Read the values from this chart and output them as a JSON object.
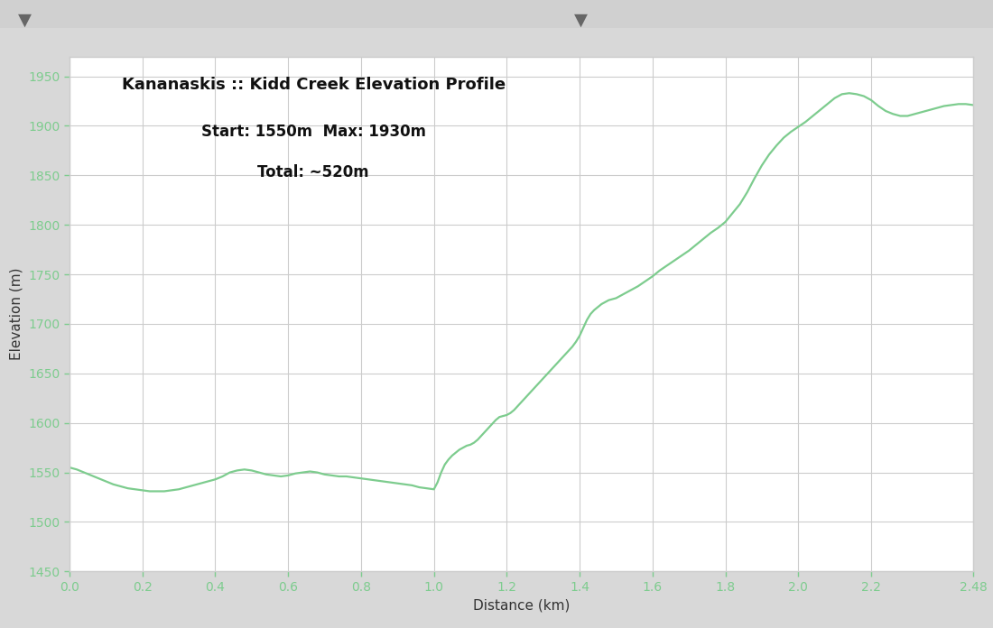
{
  "title_line1": "Kananaskis :: Kidd Creek Elevation Profile",
  "title_line2": "Start: 1550m  Max: 1930m",
  "title_line3": "Total: ~520m",
  "xlabel": "Distance (km)",
  "ylabel": "Elevation (m)",
  "xlim": [
    0.0,
    2.48
  ],
  "ylim": [
    1450,
    1970
  ],
  "xticks": [
    0.0,
    0.2,
    0.4,
    0.6,
    0.8,
    1.0,
    1.2,
    1.4,
    1.6,
    1.8,
    2.0,
    2.2,
    2.48
  ],
  "yticks": [
    1450,
    1500,
    1550,
    1600,
    1650,
    1700,
    1750,
    1800,
    1850,
    1900,
    1950
  ],
  "line_color": "#7dcc8e",
  "tick_color": "#7dcc8e",
  "grid_color": "#cccccc",
  "bg_color": "#ffffff",
  "outer_bg": "#d8d8d8",
  "title_fontsize": 13,
  "subtitle_fontsize": 12,
  "axis_label_fontsize": 11,
  "tick_fontsize": 10,
  "elevation_data": [
    [
      0.0,
      1555
    ],
    [
      0.02,
      1553
    ],
    [
      0.04,
      1550
    ],
    [
      0.06,
      1547
    ],
    [
      0.08,
      1544
    ],
    [
      0.1,
      1541
    ],
    [
      0.12,
      1538
    ],
    [
      0.14,
      1536
    ],
    [
      0.16,
      1534
    ],
    [
      0.18,
      1533
    ],
    [
      0.2,
      1532
    ],
    [
      0.22,
      1531
    ],
    [
      0.24,
      1531
    ],
    [
      0.26,
      1531
    ],
    [
      0.28,
      1532
    ],
    [
      0.3,
      1533
    ],
    [
      0.32,
      1535
    ],
    [
      0.34,
      1537
    ],
    [
      0.36,
      1539
    ],
    [
      0.38,
      1541
    ],
    [
      0.4,
      1543
    ],
    [
      0.42,
      1546
    ],
    [
      0.44,
      1550
    ],
    [
      0.46,
      1552
    ],
    [
      0.48,
      1553
    ],
    [
      0.5,
      1552
    ],
    [
      0.52,
      1550
    ],
    [
      0.54,
      1548
    ],
    [
      0.56,
      1547
    ],
    [
      0.58,
      1546
    ],
    [
      0.6,
      1547
    ],
    [
      0.62,
      1549
    ],
    [
      0.64,
      1550
    ],
    [
      0.66,
      1551
    ],
    [
      0.68,
      1550
    ],
    [
      0.7,
      1548
    ],
    [
      0.72,
      1547
    ],
    [
      0.74,
      1546
    ],
    [
      0.76,
      1546
    ],
    [
      0.78,
      1545
    ],
    [
      0.8,
      1544
    ],
    [
      0.82,
      1543
    ],
    [
      0.84,
      1542
    ],
    [
      0.86,
      1541
    ],
    [
      0.88,
      1540
    ],
    [
      0.9,
      1539
    ],
    [
      0.92,
      1538
    ],
    [
      0.94,
      1537
    ],
    [
      0.96,
      1535
    ],
    [
      0.98,
      1534
    ],
    [
      1.0,
      1533
    ],
    [
      1.01,
      1540
    ],
    [
      1.02,
      1550
    ],
    [
      1.03,
      1558
    ],
    [
      1.04,
      1563
    ],
    [
      1.05,
      1567
    ],
    [
      1.06,
      1570
    ],
    [
      1.07,
      1573
    ],
    [
      1.08,
      1575
    ],
    [
      1.09,
      1577
    ],
    [
      1.1,
      1578
    ],
    [
      1.11,
      1580
    ],
    [
      1.12,
      1583
    ],
    [
      1.13,
      1587
    ],
    [
      1.14,
      1591
    ],
    [
      1.15,
      1595
    ],
    [
      1.16,
      1599
    ],
    [
      1.17,
      1603
    ],
    [
      1.18,
      1606
    ],
    [
      1.19,
      1607
    ],
    [
      1.2,
      1608
    ],
    [
      1.21,
      1610
    ],
    [
      1.22,
      1613
    ],
    [
      1.23,
      1617
    ],
    [
      1.24,
      1621
    ],
    [
      1.25,
      1625
    ],
    [
      1.26,
      1629
    ],
    [
      1.27,
      1633
    ],
    [
      1.28,
      1637
    ],
    [
      1.29,
      1641
    ],
    [
      1.3,
      1645
    ],
    [
      1.31,
      1649
    ],
    [
      1.32,
      1653
    ],
    [
      1.33,
      1657
    ],
    [
      1.34,
      1661
    ],
    [
      1.35,
      1665
    ],
    [
      1.36,
      1669
    ],
    [
      1.37,
      1673
    ],
    [
      1.38,
      1677
    ],
    [
      1.39,
      1682
    ],
    [
      1.4,
      1688
    ],
    [
      1.41,
      1696
    ],
    [
      1.42,
      1704
    ],
    [
      1.43,
      1710
    ],
    [
      1.44,
      1714
    ],
    [
      1.45,
      1717
    ],
    [
      1.46,
      1720
    ],
    [
      1.47,
      1722
    ],
    [
      1.48,
      1724
    ],
    [
      1.5,
      1726
    ],
    [
      1.52,
      1730
    ],
    [
      1.54,
      1734
    ],
    [
      1.56,
      1738
    ],
    [
      1.58,
      1743
    ],
    [
      1.6,
      1748
    ],
    [
      1.62,
      1754
    ],
    [
      1.64,
      1759
    ],
    [
      1.66,
      1764
    ],
    [
      1.68,
      1769
    ],
    [
      1.7,
      1774
    ],
    [
      1.72,
      1780
    ],
    [
      1.74,
      1786
    ],
    [
      1.76,
      1792
    ],
    [
      1.78,
      1797
    ],
    [
      1.8,
      1803
    ],
    [
      1.82,
      1812
    ],
    [
      1.84,
      1821
    ],
    [
      1.86,
      1833
    ],
    [
      1.88,
      1847
    ],
    [
      1.9,
      1860
    ],
    [
      1.92,
      1871
    ],
    [
      1.94,
      1880
    ],
    [
      1.96,
      1888
    ],
    [
      1.98,
      1894
    ],
    [
      2.0,
      1899
    ],
    [
      2.02,
      1904
    ],
    [
      2.04,
      1910
    ],
    [
      2.06,
      1916
    ],
    [
      2.08,
      1922
    ],
    [
      2.1,
      1928
    ],
    [
      2.12,
      1932
    ],
    [
      2.14,
      1933
    ],
    [
      2.16,
      1932
    ],
    [
      2.18,
      1930
    ],
    [
      2.2,
      1926
    ],
    [
      2.22,
      1920
    ],
    [
      2.24,
      1915
    ],
    [
      2.26,
      1912
    ],
    [
      2.28,
      1910
    ],
    [
      2.3,
      1910
    ],
    [
      2.32,
      1912
    ],
    [
      2.34,
      1914
    ],
    [
      2.36,
      1916
    ],
    [
      2.38,
      1918
    ],
    [
      2.4,
      1920
    ],
    [
      2.42,
      1921
    ],
    [
      2.44,
      1922
    ],
    [
      2.46,
      1922
    ],
    [
      2.48,
      1921
    ]
  ]
}
